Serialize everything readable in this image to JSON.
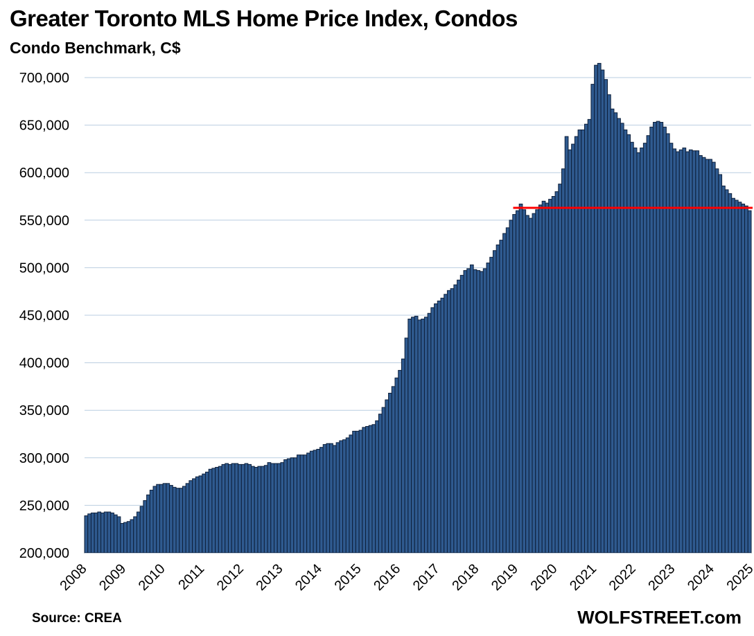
{
  "chart_data": {
    "type": "bar",
    "title": "Greater Toronto MLS Home Price Index, Condos",
    "subtitle": "Condo Benchmark, C$",
    "xlabel": "",
    "ylabel": "",
    "ylim": [
      200000,
      720000
    ],
    "grid": true,
    "y_ticks": [
      200000,
      250000,
      300000,
      350000,
      400000,
      450000,
      500000,
      550000,
      600000,
      650000,
      700000
    ],
    "y_tick_labels": [
      "200,000",
      "250,000",
      "300,000",
      "350,000",
      "400,000",
      "450,000",
      "500,000",
      "550,000",
      "600,000",
      "650,000",
      "700,000"
    ],
    "x_tick_labels": [
      "2008",
      "2009",
      "2010",
      "2011",
      "2012",
      "2013",
      "2014",
      "2015",
      "2016",
      "2017",
      "2018",
      "2019",
      "2020",
      "2021",
      "2022",
      "2023",
      "2024",
      "2025"
    ],
    "start": "2008-01",
    "frequency": "monthly",
    "bar_color": "#2f5a8f",
    "bar_edge_color": "#0d1f3a",
    "reference_line": {
      "value": 563000,
      "start": "2019-01",
      "color": "#ff0000"
    },
    "values": [
      239000,
      241000,
      242000,
      242000,
      243000,
      242000,
      243000,
      243000,
      242000,
      240000,
      238000,
      231000,
      232000,
      233000,
      235000,
      238000,
      243000,
      249000,
      255000,
      261000,
      266000,
      270000,
      272000,
      272000,
      273000,
      273000,
      271000,
      269000,
      268000,
      268000,
      270000,
      273000,
      276000,
      278000,
      280000,
      281000,
      283000,
      285000,
      288000,
      289000,
      290000,
      291000,
      293000,
      294000,
      293000,
      294000,
      294000,
      293000,
      293000,
      294000,
      293000,
      291000,
      290000,
      291000,
      291000,
      292000,
      295000,
      294000,
      294000,
      294000,
      295000,
      298000,
      299000,
      300000,
      300000,
      303000,
      303000,
      303000,
      305000,
      307000,
      308000,
      309000,
      311000,
      314000,
      315000,
      315000,
      313000,
      316000,
      318000,
      319000,
      321000,
      324000,
      328000,
      328000,
      329000,
      332000,
      333000,
      334000,
      335000,
      339000,
      346000,
      353000,
      361000,
      368000,
      375000,
      384000,
      392000,
      404000,
      426000,
      446000,
      448000,
      449000,
      445000,
      446000,
      448000,
      452000,
      458000,
      462000,
      465000,
      468000,
      472000,
      476000,
      478000,
      482000,
      487000,
      492000,
      497000,
      499000,
      503000,
      498000,
      497000,
      496000,
      499000,
      505000,
      511000,
      518000,
      524000,
      529000,
      536000,
      542000,
      550000,
      556000,
      560000,
      567000,
      561000,
      555000,
      552000,
      557000,
      561000,
      566000,
      570000,
      568000,
      572000,
      575000,
      580000,
      588000,
      604000,
      638000,
      624000,
      630000,
      638000,
      645000,
      645000,
      651000,
      656000,
      693000,
      713000,
      715000,
      708000,
      698000,
      682000,
      667000,
      663000,
      657000,
      652000,
      645000,
      640000,
      632000,
      626000,
      621000,
      626000,
      631000,
      639000,
      648000,
      653000,
      654000,
      653000,
      648000,
      641000,
      631000,
      625000,
      622000,
      624000,
      626000,
      622000,
      624000,
      623000,
      623000,
      618000,
      616000,
      614000,
      614000,
      611000,
      604000,
      598000,
      586000,
      582000,
      578000,
      573000,
      571000,
      569000,
      567000,
      565000,
      560000
    ]
  },
  "labels": {
    "title": "Greater Toronto MLS Home Price Index, Condos",
    "subtitle": "Condo Benchmark, C$",
    "source": "Source: CREA",
    "brand": "WOLFSTREET.com"
  }
}
